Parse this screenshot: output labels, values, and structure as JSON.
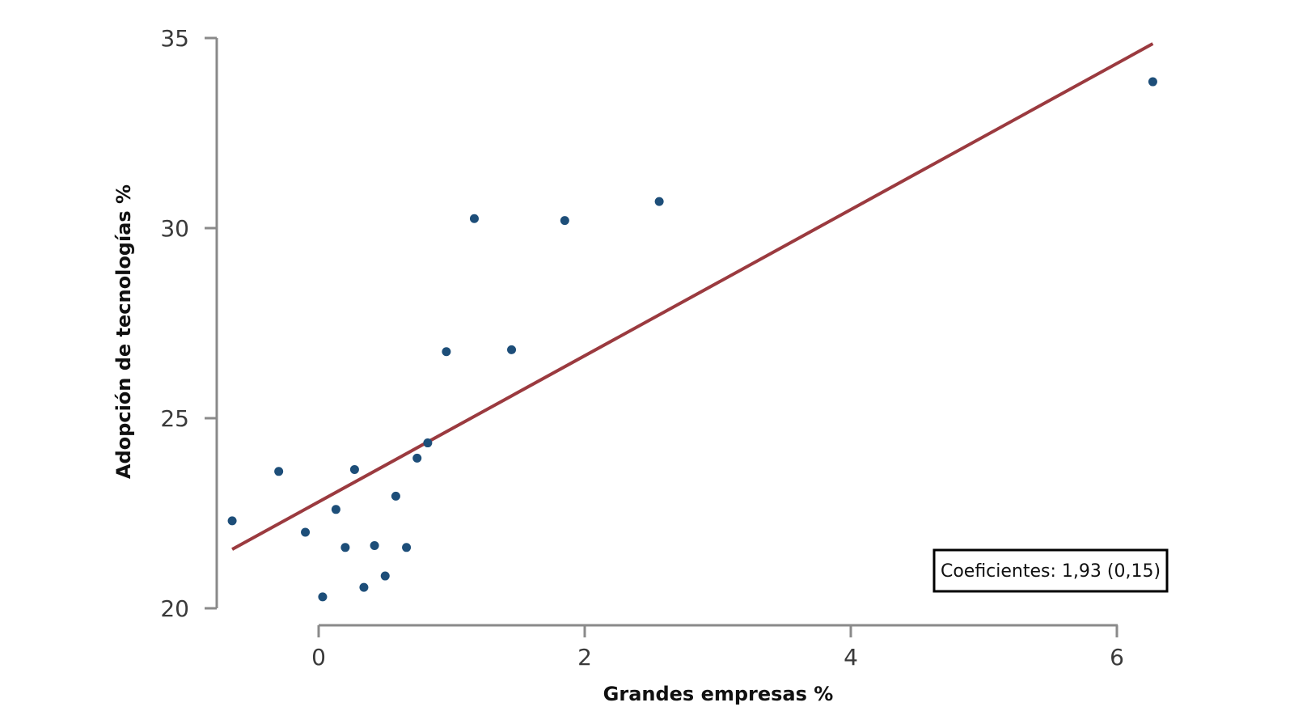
{
  "chart_data": {
    "type": "scatter",
    "title": "",
    "xlabel": "Grandes empresas %",
    "ylabel": "Adopción de tecnologías %",
    "xlim": [
      -0.65,
      6.3
    ],
    "ylim": [
      20,
      35
    ],
    "xticks": [
      0,
      2,
      4,
      6
    ],
    "yticks": [
      20,
      25,
      30,
      35
    ],
    "xtick_labels": [
      "0",
      "2",
      "4",
      "6"
    ],
    "ytick_labels": [
      "20",
      "25",
      "30",
      "35"
    ],
    "grid": false,
    "points": [
      {
        "x": -0.65,
        "y": 22.3
      },
      {
        "x": -0.3,
        "y": 23.6
      },
      {
        "x": -0.1,
        "y": 22.0
      },
      {
        "x": 0.03,
        "y": 20.3
      },
      {
        "x": 0.13,
        "y": 22.6
      },
      {
        "x": 0.2,
        "y": 21.6
      },
      {
        "x": 0.27,
        "y": 23.65
      },
      {
        "x": 0.34,
        "y": 20.55
      },
      {
        "x": 0.42,
        "y": 21.65
      },
      {
        "x": 0.5,
        "y": 20.85
      },
      {
        "x": 0.58,
        "y": 22.95
      },
      {
        "x": 0.66,
        "y": 21.6
      },
      {
        "x": 0.74,
        "y": 23.95
      },
      {
        "x": 0.82,
        "y": 24.35
      },
      {
        "x": 0.96,
        "y": 26.75
      },
      {
        "x": 1.17,
        "y": 30.25
      },
      {
        "x": 1.45,
        "y": 26.8
      },
      {
        "x": 1.85,
        "y": 30.2
      },
      {
        "x": 2.56,
        "y": 30.7
      },
      {
        "x": 6.27,
        "y": 33.85
      }
    ],
    "trendline": {
      "x": [
        -0.65,
        6.27
      ],
      "y": [
        21.55,
        34.85
      ],
      "color": "#9b3a3f"
    },
    "point_color": "#1d4e79",
    "annotation": "Coeficientes: 1,93 (0,15)",
    "annotation_position": "bottom-right"
  }
}
